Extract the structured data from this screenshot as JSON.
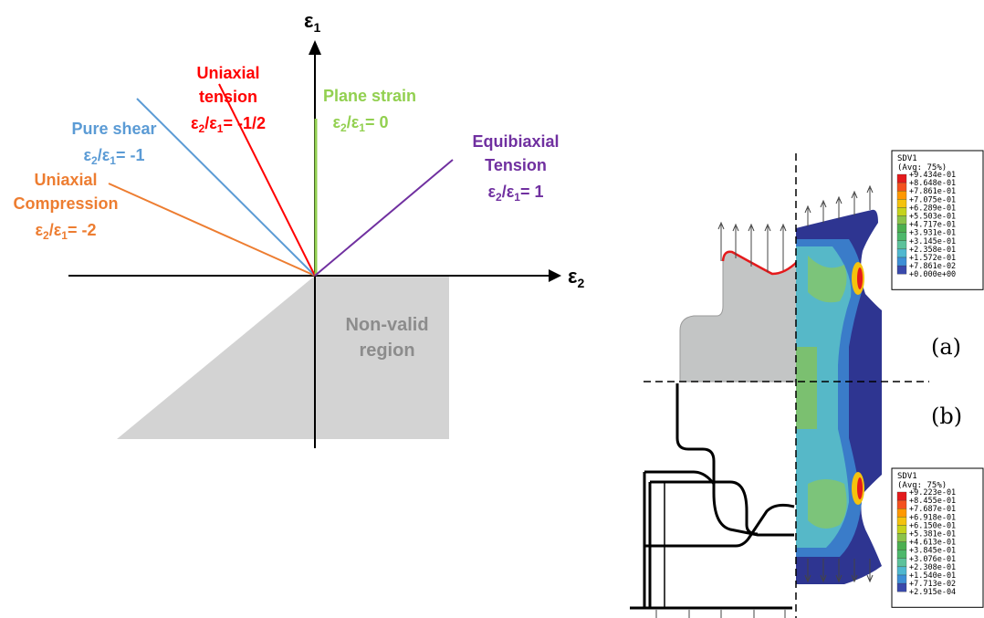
{
  "strain_diagram": {
    "axis_y": {
      "sym": "ε",
      "sub": "1"
    },
    "axis_x": {
      "sym": "ε",
      "sub": "2"
    },
    "non_valid_region": {
      "line1": "Non-valid",
      "line2": "region",
      "color": "#d3d3d3"
    },
    "lines": [
      {
        "id": "uniaxial-compression",
        "title": [
          "Uniaxial",
          "Compression"
        ],
        "ratio": "-2",
        "color": "#ed7d31"
      },
      {
        "id": "pure-shear",
        "title": [
          "Pure shear"
        ],
        "ratio": "-1",
        "color": "#5b9bd5"
      },
      {
        "id": "uniaxial-tension",
        "title": [
          "Uniaxial",
          "tension"
        ],
        "ratio": "-1/2",
        "color": "#ff0000"
      },
      {
        "id": "plane-strain",
        "title": [
          "Plane strain"
        ],
        "ratio": "0",
        "color": "#92d050"
      },
      {
        "id": "equibiaxial-tension",
        "title": [
          "Equibiaxial",
          "Tension"
        ],
        "ratio": "1",
        "color": "#7030a0"
      }
    ]
  },
  "fea": {
    "label_a": "(a)",
    "label_b": "(b)",
    "legend_a": {
      "title": "SDV1",
      "subtitle": "(Avg: 75%)",
      "values": [
        "+9.434e-01",
        "+8.648e-01",
        "+7.861e-01",
        "+7.075e-01",
        "+6.289e-01",
        "+5.503e-01",
        "+4.717e-01",
        "+3.931e-01",
        "+3.145e-01",
        "+2.358e-01",
        "+1.572e-01",
        "+7.861e-02",
        "+0.000e+00"
      ]
    },
    "legend_b": {
      "title": "SDV1",
      "subtitle": "(Avg: 75%)",
      "values": [
        "+9.223e-01",
        "+8.455e-01",
        "+7.687e-01",
        "+6.918e-01",
        "+6.150e-01",
        "+5.381e-01",
        "+4.613e-01",
        "+3.845e-01",
        "+3.076e-01",
        "+2.308e-01",
        "+1.540e-01",
        "+7.713e-02",
        "+2.915e-04"
      ]
    },
    "colorscale": [
      "#e41a1c",
      "#f4511e",
      "#ff9800",
      "#f4c20d",
      "#c6d31c",
      "#8bc34a",
      "#4caf50",
      "#4db86b",
      "#5cc29b",
      "#4fb8d0",
      "#3d8fd6",
      "#3949ab",
      "#2b2f8f"
    ]
  }
}
